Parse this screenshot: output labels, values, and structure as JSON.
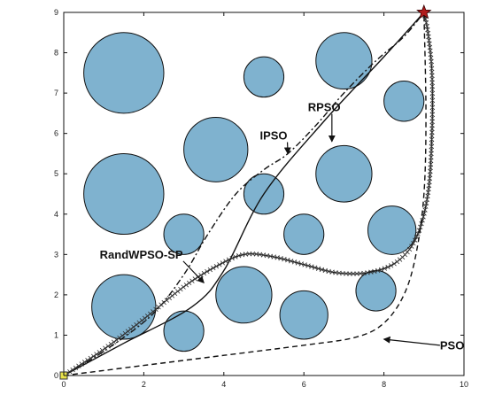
{
  "chart_data": {
    "type": "line",
    "xlim": [
      0,
      10
    ],
    "ylim": [
      0,
      9
    ],
    "x_ticks": [
      0,
      2,
      4,
      6,
      8,
      10
    ],
    "y_ticks": [
      0,
      1,
      2,
      3,
      4,
      5,
      6,
      7,
      8,
      9
    ],
    "grid": false,
    "start": {
      "x": 0,
      "y": 0
    },
    "goal": {
      "x": 9,
      "y": 9
    },
    "obstacles": [
      {
        "cx": 1.5,
        "cy": 7.5,
        "r": 1.0
      },
      {
        "cx": 5.0,
        "cy": 7.4,
        "r": 0.5
      },
      {
        "cx": 7.0,
        "cy": 7.8,
        "r": 0.7
      },
      {
        "cx": 8.5,
        "cy": 6.8,
        "r": 0.5
      },
      {
        "cx": 3.8,
        "cy": 5.6,
        "r": 0.8
      },
      {
        "cx": 1.5,
        "cy": 4.5,
        "r": 1.0
      },
      {
        "cx": 5.0,
        "cy": 4.5,
        "r": 0.5
      },
      {
        "cx": 7.0,
        "cy": 5.0,
        "r": 0.7
      },
      {
        "cx": 3.0,
        "cy": 3.5,
        "r": 0.5
      },
      {
        "cx": 6.0,
        "cy": 3.5,
        "r": 0.5
      },
      {
        "cx": 8.2,
        "cy": 3.6,
        "r": 0.6
      },
      {
        "cx": 1.5,
        "cy": 1.7,
        "r": 0.8
      },
      {
        "cx": 4.5,
        "cy": 2.0,
        "r": 0.7
      },
      {
        "cx": 6.0,
        "cy": 1.5,
        "r": 0.6
      },
      {
        "cx": 7.8,
        "cy": 2.1,
        "r": 0.5
      },
      {
        "cx": 3.0,
        "cy": 1.1,
        "r": 0.5
      }
    ],
    "series": [
      {
        "name": "RPSO",
        "style": "solid",
        "x": [
          0,
          1.5,
          3.2,
          4.0,
          5.0,
          6.5,
          8.0,
          9.0
        ],
        "y": [
          0,
          0.8,
          1.7,
          2.6,
          4.5,
          6.3,
          7.9,
          9.0
        ]
      },
      {
        "name": "IPSO",
        "style": "dashdot",
        "x": [
          0,
          1.0,
          2.2,
          3.0,
          3.6,
          4.3,
          5.0,
          5.6,
          6.3,
          7.0,
          7.8,
          8.5,
          9.0
        ],
        "y": [
          0,
          0.6,
          1.5,
          2.5,
          3.5,
          4.5,
          5.1,
          5.5,
          6.2,
          7.0,
          7.8,
          8.4,
          9.0
        ]
      },
      {
        "name": "RandWPSO-SP",
        "style": "x-marker",
        "x": [
          0,
          1.0,
          2.0,
          3.0,
          3.8,
          4.5,
          5.2,
          6.0,
          6.8,
          7.6,
          8.3,
          8.8,
          9.1,
          9.2,
          9.2,
          9.1,
          9.0
        ],
        "y": [
          0,
          0.65,
          1.4,
          2.2,
          2.7,
          3.0,
          2.95,
          2.75,
          2.55,
          2.55,
          2.8,
          3.4,
          4.5,
          6.0,
          7.5,
          8.5,
          9.0
        ]
      },
      {
        "name": "PSO",
        "style": "dashed",
        "x": [
          0,
          2.0,
          4.0,
          6.0,
          7.3,
          8.0,
          8.5,
          8.8,
          9.0,
          9.05,
          9.0
        ],
        "y": [
          0,
          0.25,
          0.5,
          0.75,
          0.95,
          1.3,
          2.0,
          3.0,
          4.5,
          6.5,
          9.0
        ]
      }
    ],
    "annotations": [
      {
        "text": "RPSO",
        "series": "RPSO",
        "label_at": [
          6.1,
          6.55
        ],
        "arrow_to": [
          6.7,
          5.8
        ]
      },
      {
        "text": "IPSO",
        "series": "IPSO",
        "label_at": [
          4.9,
          5.85
        ],
        "arrow_to": [
          5.6,
          5.5
        ]
      },
      {
        "text": "RandWPSO-SP",
        "series": "RandWPSO-SP",
        "label_at": [
          0.9,
          2.9
        ],
        "arrow_to": [
          3.5,
          2.3
        ]
      },
      {
        "text": "PSO",
        "series": "PSO",
        "label_at": [
          9.4,
          0.65
        ],
        "arrow_to": [
          8.0,
          0.9
        ]
      }
    ],
    "colors": {
      "obstacle_fill": "#7fb2cf",
      "obstacle_stroke": "#111111",
      "goal_star": "#b01b1b",
      "start_marker": "#e8e24a",
      "line": "#111111"
    }
  }
}
